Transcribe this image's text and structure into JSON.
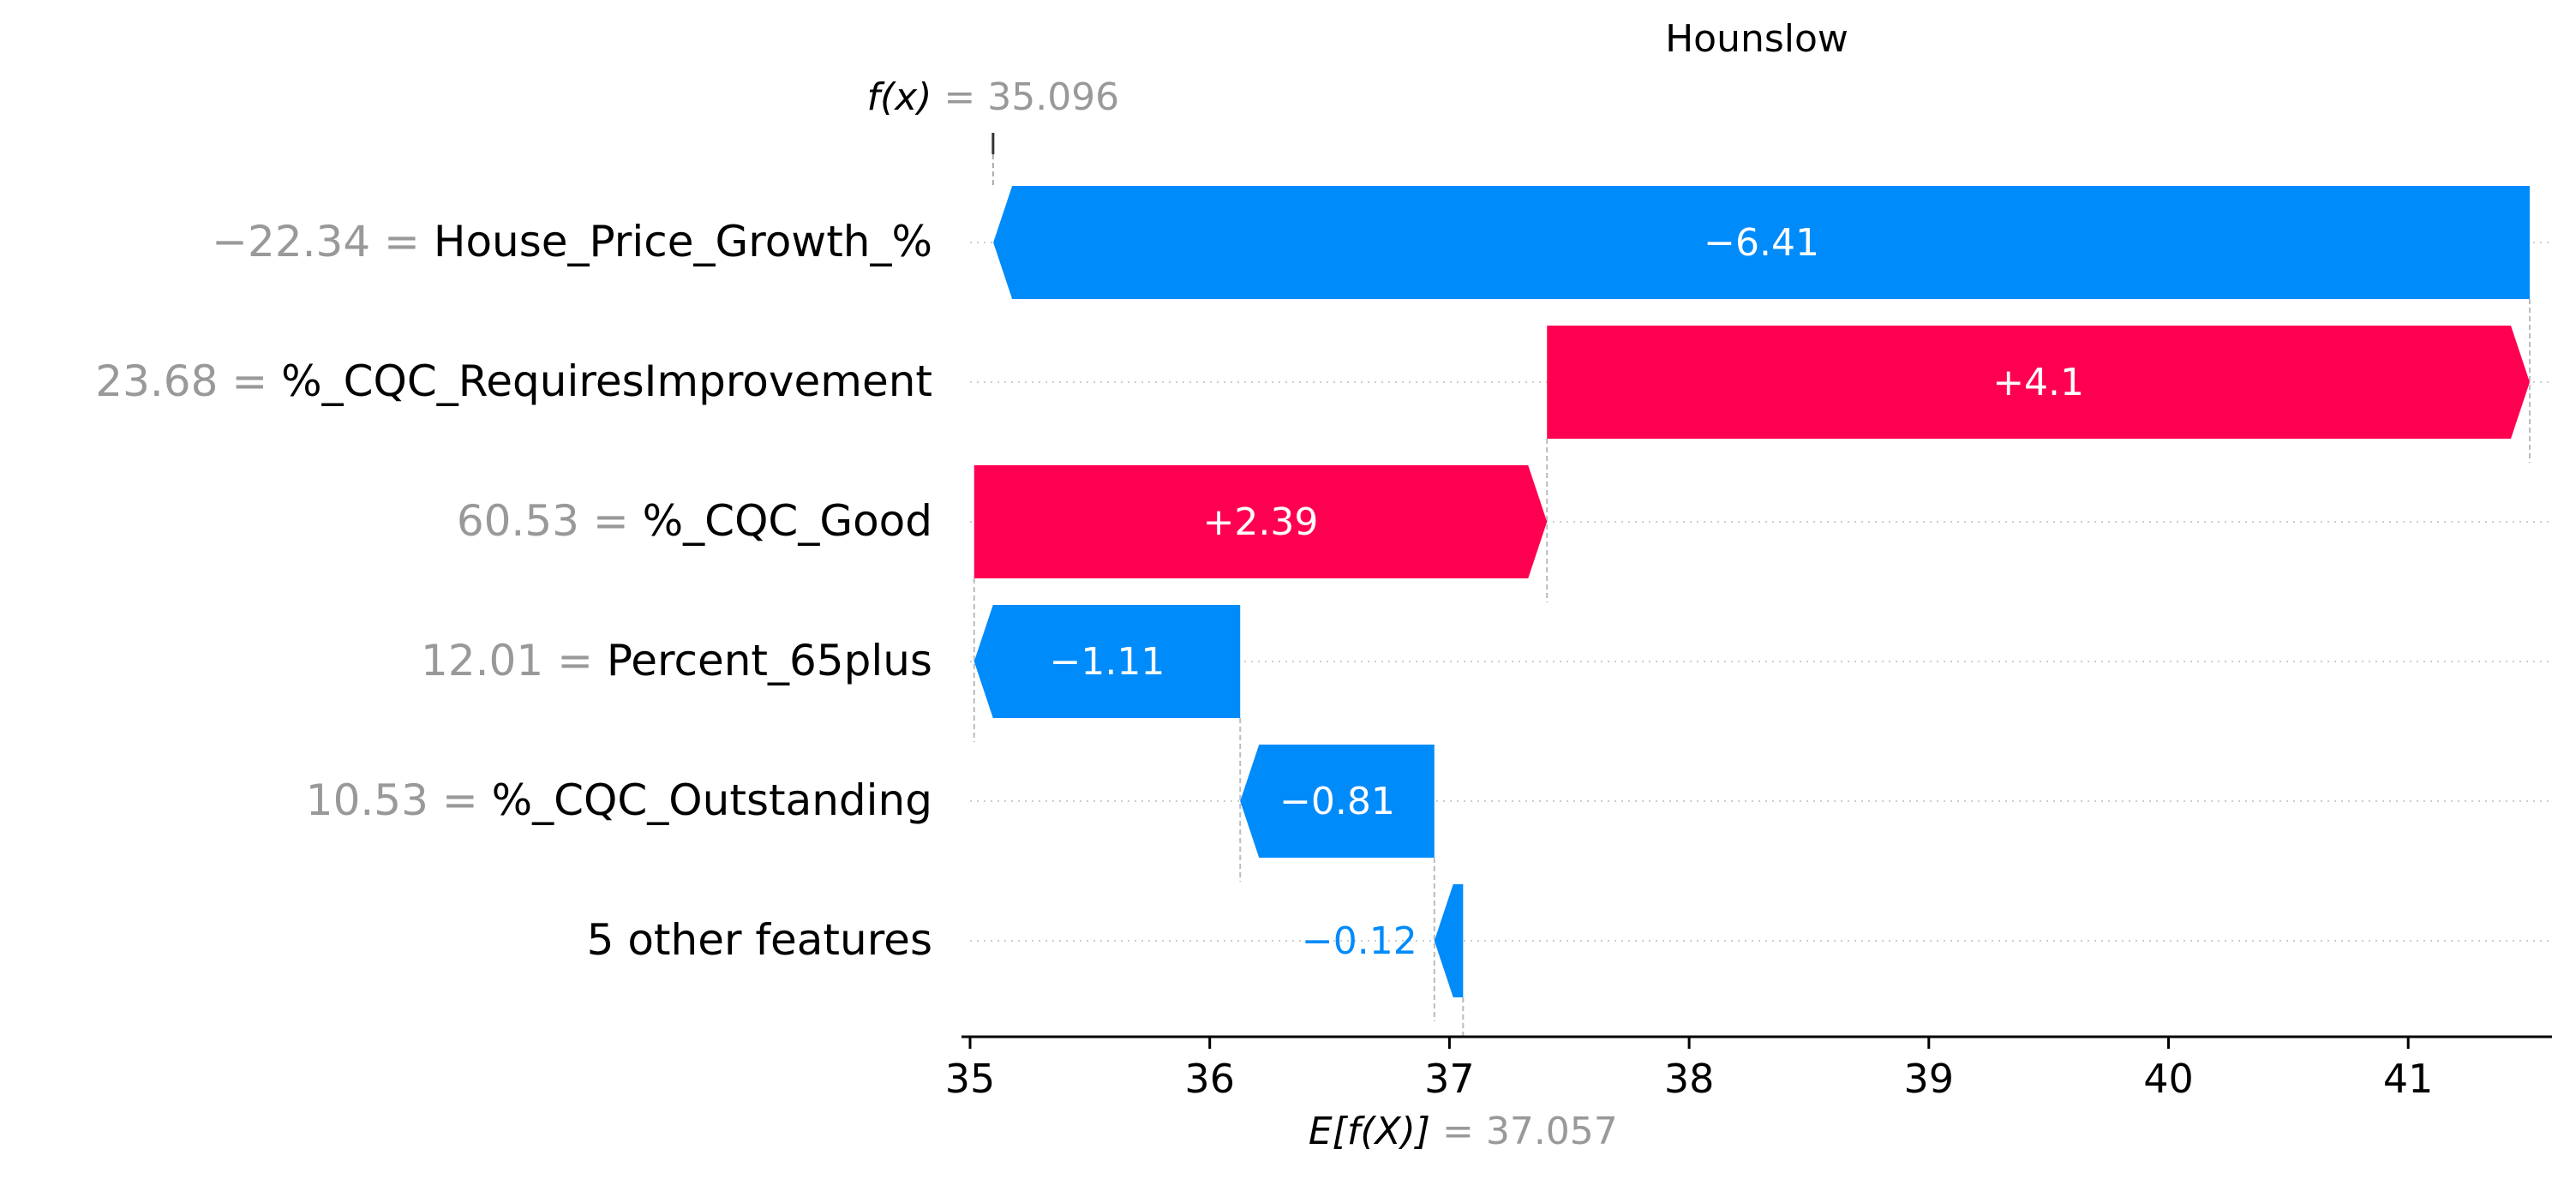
{
  "chart_data": {
    "type": "waterfall",
    "title": "Hounslow",
    "fx_label": "f(x)",
    "fx_value": "35.096",
    "base_label": "E[f(X)]",
    "base_value": "37.057",
    "fx": 35.096,
    "base": 37.057,
    "xlim": [
      35.0,
      41.6
    ],
    "xticks": [
      "35",
      "36",
      "37",
      "38",
      "39",
      "40",
      "41"
    ],
    "xtick_values": [
      35,
      36,
      37,
      38,
      39,
      40,
      41
    ],
    "colors": {
      "positive": "#ff0051",
      "negative": "#008bfb",
      "label_gray": "#999999"
    },
    "features": [
      {
        "name": "House_Price_Growth_%",
        "value": "−22.34",
        "contribution": -6.41,
        "label": "−6.41"
      },
      {
        "name": "%_CQC_RequiresImprovement",
        "value": "23.68",
        "contribution": 4.1,
        "label": "+4.1"
      },
      {
        "name": "%_CQC_Good",
        "value": "60.53",
        "contribution": 2.39,
        "label": "+2.39"
      },
      {
        "name": "Percent_65plus",
        "value": "12.01",
        "contribution": -1.11,
        "label": "−1.11"
      },
      {
        "name": "%_CQC_Outstanding",
        "value": "10.53",
        "contribution": -0.81,
        "label": "−0.81"
      },
      {
        "name": "5 other features",
        "value": "",
        "contribution": -0.12,
        "label": "−0.12"
      }
    ]
  }
}
